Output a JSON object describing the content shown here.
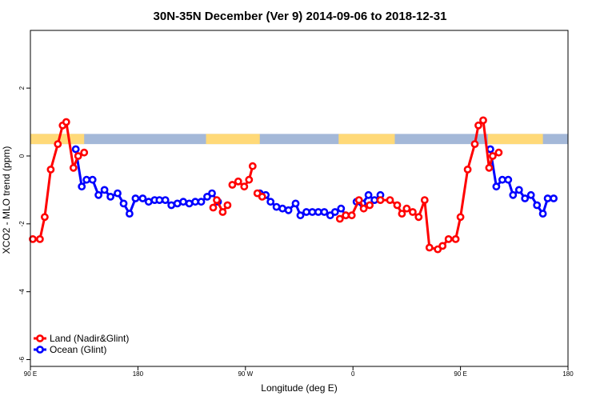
{
  "chart_data": {
    "type": "line",
    "title": "30N-35N December (Ver 9)   2014-09-06 to 2018-12-31",
    "xlabel": "Longitude (deg E)",
    "ylabel": "XCO2 - MLO trend (ppm)",
    "xlim": [
      90,
      540
    ],
    "ylim": [
      -6.2,
      3.7
    ],
    "x_ticks": [
      {
        "value": 90,
        "label": "90 E"
      },
      {
        "value": 180,
        "label": "180"
      },
      {
        "value": 270,
        "label": "90 W"
      },
      {
        "value": 360,
        "label": "0"
      },
      {
        "value": 450,
        "label": "90 E"
      },
      {
        "value": 540,
        "label": "180"
      }
    ],
    "y_ticks": [
      {
        "value": 2,
        "label": "2"
      },
      {
        "value": 0,
        "label": "0"
      },
      {
        "value": -2,
        "label": "-2"
      },
      {
        "value": -4,
        "label": "-4"
      },
      {
        "value": -6,
        "label": "-6"
      }
    ],
    "colors": {
      "land": "#ff0000",
      "ocean": "#0000ff",
      "land_strip": "#ffd978",
      "ocean_strip": "#a4b8d8"
    },
    "land_mask": {
      "y_range": [
        0.35,
        0.65
      ],
      "land_segments": [
        [
          90,
          135
        ],
        [
          237,
          282
        ],
        [
          348,
          395
        ],
        [
          473,
          519
        ]
      ]
    },
    "series": [
      {
        "name": "Land (Nadir&Glint)",
        "segments": [
          [
            [
              92,
              -2.45
            ],
            [
              98,
              -2.45
            ],
            [
              102,
              -1.8
            ],
            [
              107,
              -0.4
            ],
            [
              113,
              0.35
            ],
            [
              117,
              0.9
            ],
            [
              120,
              1.0
            ],
            [
              126,
              -0.35
            ],
            [
              130,
              0.0
            ],
            [
              135,
              0.1
            ]
          ],
          [
            [
              243,
              -1.52
            ],
            [
              246,
              -1.3
            ],
            [
              251,
              -1.65
            ],
            [
              255,
              -1.45
            ]
          ],
          [
            [
              259,
              -0.85
            ],
            [
              264,
              -0.75
            ],
            [
              269,
              -0.9
            ],
            [
              273,
              -0.7
            ],
            [
              276,
              -0.3
            ]
          ],
          [
            [
              280,
              -1.1
            ],
            [
              284,
              -1.2
            ]
          ],
          [
            [
              349,
              -1.85
            ],
            [
              354,
              -1.75
            ],
            [
              359,
              -1.75
            ],
            [
              365,
              -1.3
            ],
            [
              369,
              -1.55
            ],
            [
              374,
              -1.45
            ]
          ],
          [
            [
              383,
              -1.3
            ],
            [
              391,
              -1.3
            ],
            [
              397,
              -1.45
            ],
            [
              401,
              -1.7
            ],
            [
              405,
              -1.55
            ],
            [
              410,
              -1.65
            ],
            [
              415,
              -1.8
            ],
            [
              420,
              -1.3
            ],
            [
              424,
              -2.7
            ],
            [
              431,
              -2.75
            ],
            [
              435,
              -2.65
            ],
            [
              440,
              -2.45
            ],
            [
              446,
              -2.45
            ],
            [
              450,
              -1.8
            ],
            [
              456,
              -0.4
            ],
            [
              462,
              0.35
            ],
            [
              465,
              0.9
            ],
            [
              469,
              1.05
            ],
            [
              474,
              -0.35
            ],
            [
              477,
              0.0
            ],
            [
              482,
              0.1
            ]
          ]
        ]
      },
      {
        "name": "Ocean (Glint)",
        "segments": [
          [
            [
              128,
              0.2
            ],
            [
              133,
              -0.9
            ],
            [
              137,
              -0.7
            ],
            [
              142,
              -0.7
            ],
            [
              147,
              -1.15
            ],
            [
              152,
              -1.0
            ],
            [
              157,
              -1.2
            ],
            [
              163,
              -1.1
            ],
            [
              168,
              -1.4
            ],
            [
              173,
              -1.7
            ],
            [
              178,
              -1.25
            ],
            [
              184,
              -1.25
            ],
            [
              189,
              -1.35
            ],
            [
              194,
              -1.3
            ],
            [
              198,
              -1.3
            ],
            [
              203,
              -1.3
            ],
            [
              208,
              -1.45
            ],
            [
              213,
              -1.4
            ],
            [
              218,
              -1.35
            ],
            [
              223,
              -1.4
            ],
            [
              228,
              -1.35
            ],
            [
              233,
              -1.35
            ],
            [
              238,
              -1.2
            ],
            [
              242,
              -1.1
            ],
            [
              247,
              -1.35
            ]
          ],
          [
            [
              282,
              -1.1
            ],
            [
              287,
              -1.15
            ],
            [
              291,
              -1.35
            ],
            [
              296,
              -1.5
            ],
            [
              301,
              -1.55
            ],
            [
              306,
              -1.6
            ],
            [
              312,
              -1.4
            ],
            [
              316,
              -1.75
            ],
            [
              321,
              -1.65
            ],
            [
              326,
              -1.65
            ],
            [
              331,
              -1.65
            ],
            [
              336,
              -1.65
            ],
            [
              341,
              -1.75
            ],
            [
              345,
              -1.65
            ],
            [
              350,
              -1.55
            ],
            [
              354,
              -1.75
            ]
          ],
          [
            [
              363,
              -1.35
            ],
            [
              368,
              -1.4
            ],
            [
              373,
              -1.15
            ],
            [
              378,
              -1.3
            ],
            [
              383,
              -1.15
            ]
          ],
          [
            [
              475,
              0.2
            ],
            [
              480,
              -0.9
            ],
            [
              485,
              -0.7
            ],
            [
              490,
              -0.7
            ],
            [
              494,
              -1.15
            ],
            [
              499,
              -1.0
            ],
            [
              504,
              -1.25
            ],
            [
              509,
              -1.15
            ],
            [
              514,
              -1.45
            ],
            [
              519,
              -1.7
            ],
            [
              523,
              -1.25
            ],
            [
              528,
              -1.25
            ]
          ]
        ]
      }
    ],
    "legend": {
      "position": "bottom-left",
      "entries": [
        {
          "label": "Land (Nadir&Glint)",
          "color": "#ff0000"
        },
        {
          "label": "Ocean (Glint)",
          "color": "#0000ff"
        }
      ]
    }
  }
}
